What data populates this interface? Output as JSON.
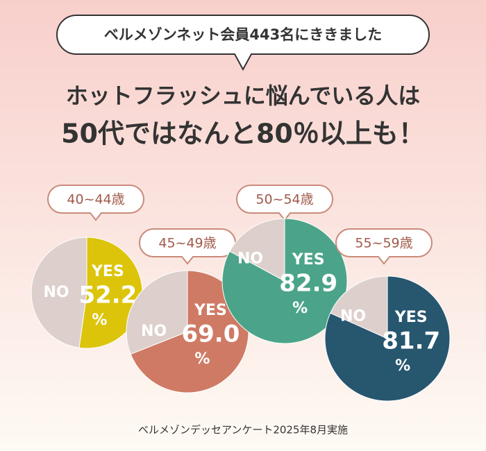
{
  "header": {
    "bubble": "ベルメゾンネット会員443名にききました",
    "headline": [
      "ホットフラッシュに悩んでいる人は",
      "50代ではなんと80％以上も！"
    ]
  },
  "footer": "ベルメゾンデッセアンケート2025年8月実施",
  "chart_data": [
    {
      "type": "pie",
      "title": "40~44歳",
      "categories": [
        "YES",
        "NO"
      ],
      "values": [
        52.2,
        47.8
      ],
      "value_labels": [
        "52.2",
        null
      ],
      "unit": "%",
      "colors": [
        "#dcc40a",
        "#ddd0cc"
      ]
    },
    {
      "type": "pie",
      "title": "45~49歳",
      "categories": [
        "YES",
        "NO"
      ],
      "values": [
        69.0,
        31.0
      ],
      "value_labels": [
        "69.0",
        null
      ],
      "unit": "%",
      "colors": [
        "#cf7a65",
        "#ddd0cc"
      ]
    },
    {
      "type": "pie",
      "title": "50~54歳",
      "categories": [
        "YES",
        "NO"
      ],
      "values": [
        82.9,
        17.1
      ],
      "value_labels": [
        "82.9",
        null
      ],
      "unit": "%",
      "colors": [
        "#4ba489",
        "#ddd0cc"
      ]
    },
    {
      "type": "pie",
      "title": "55~59歳",
      "categories": [
        "YES",
        "NO"
      ],
      "values": [
        81.7,
        18.3
      ],
      "value_labels": [
        "81.7",
        null
      ],
      "unit": "%",
      "colors": [
        "#27566f",
        "#ddd0cc"
      ]
    }
  ]
}
